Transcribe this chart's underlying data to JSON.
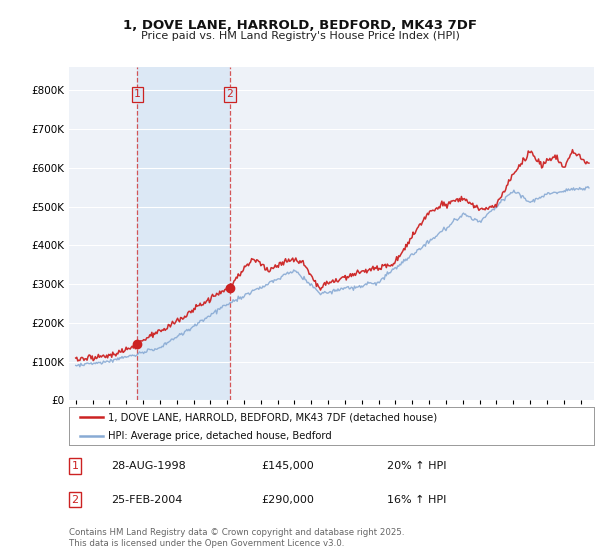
{
  "title": "1, DOVE LANE, HARROLD, BEDFORD, MK43 7DF",
  "subtitle": "Price paid vs. HM Land Registry's House Price Index (HPI)",
  "background_color": "#ffffff",
  "plot_bg_color": "#eef2f8",
  "grid_color": "#ffffff",
  "shade_color": "#dce8f5",
  "red_color": "#cc2222",
  "blue_color": "#88aad4",
  "sale1_x": 1998.67,
  "sale1_price": 145000,
  "sale2_x": 2004.15,
  "sale2_price": 290000,
  "legend_line1": "1, DOVE LANE, HARROLD, BEDFORD, MK43 7DF (detached house)",
  "legend_line2": "HPI: Average price, detached house, Bedford",
  "table_row1": [
    "1",
    "28-AUG-1998",
    "£145,000",
    "20% ↑ HPI"
  ],
  "table_row2": [
    "2",
    "25-FEB-2004",
    "£290,000",
    "16% ↑ HPI"
  ],
  "footnote": "Contains HM Land Registry data © Crown copyright and database right 2025.\nThis data is licensed under the Open Government Licence v3.0.",
  "ylim_max": 860000,
  "ylim_min": 0,
  "xmin": 1994.6,
  "xmax": 2025.8
}
